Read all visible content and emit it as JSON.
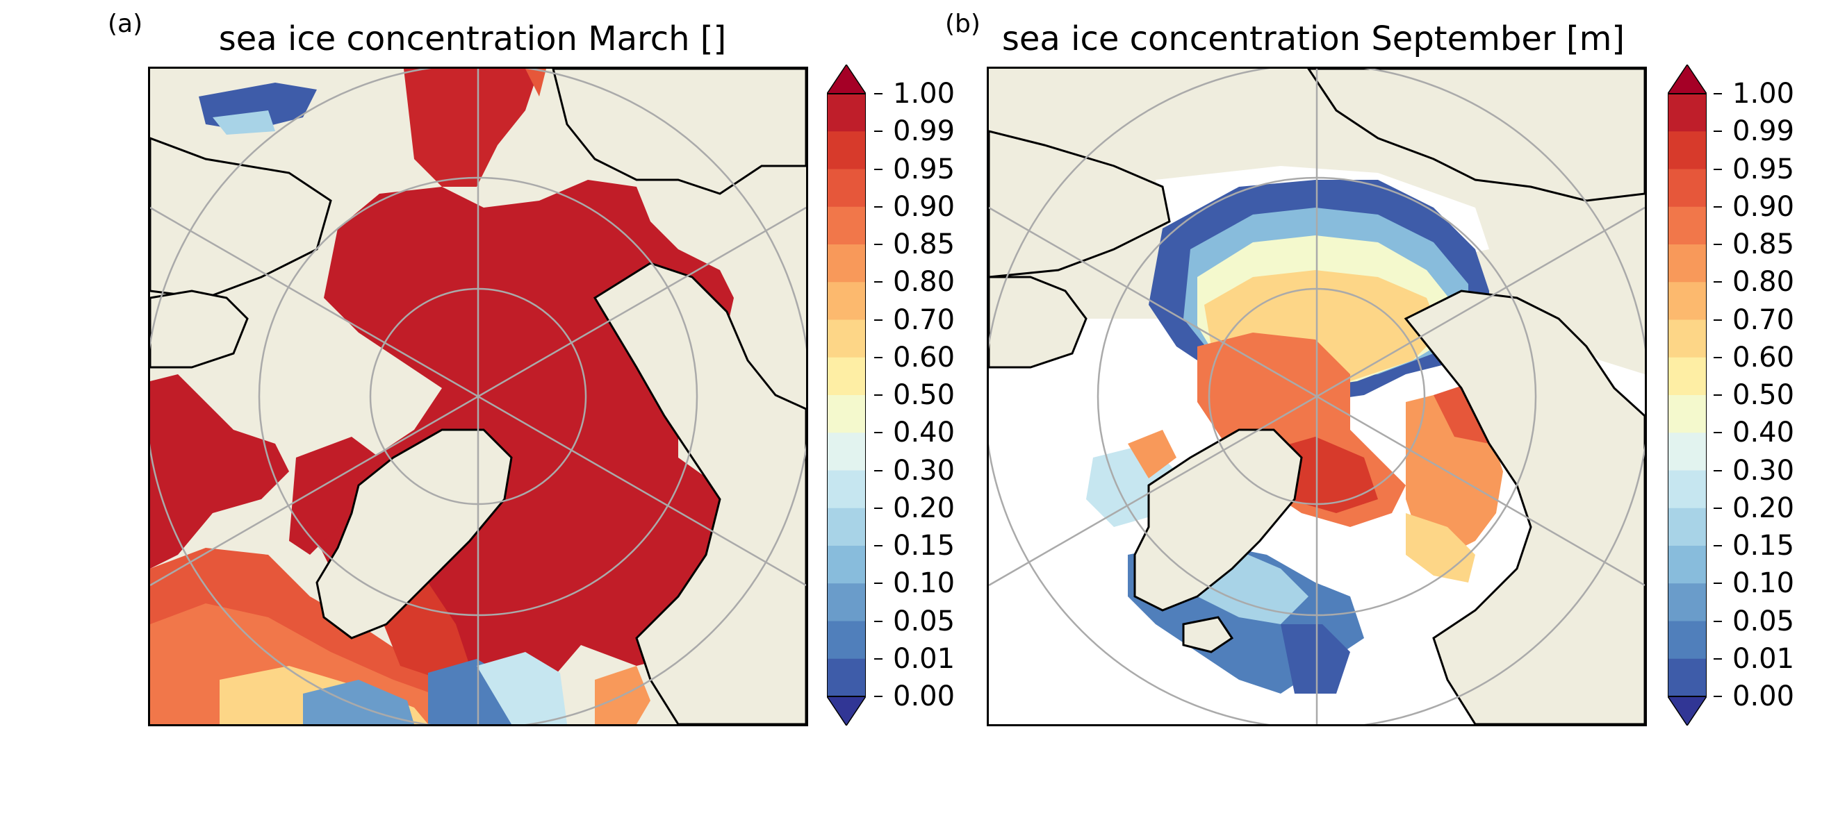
{
  "colorbar": {
    "ticks": [
      "1.00",
      "0.99",
      "0.95",
      "0.90",
      "0.85",
      "0.80",
      "0.70",
      "0.60",
      "0.50",
      "0.40",
      "0.30",
      "0.20",
      "0.15",
      "0.10",
      "0.05",
      "0.01",
      "0.00"
    ],
    "colors": [
      "#bf1e2a",
      "#d73a2b",
      "#e6573a",
      "#f1774a",
      "#f8995a",
      "#fcb96e",
      "#fdd687",
      "#feeea4",
      "#f4f9cd",
      "#e2f3ef",
      "#c6e6f0",
      "#a8d3e7",
      "#88bcdc",
      "#6a9cca",
      "#507fbb",
      "#3e5ca9"
    ],
    "over_color": "#a50026",
    "under_color": "#313695"
  },
  "panels": [
    {
      "letter": "(a)",
      "title": "sea ice concentration March []"
    },
    {
      "letter": "(b)",
      "title": "sea ice concentration September [m]"
    }
  ],
  "colors": {
    "land": "#efedde",
    "ocean_open": "#ffffff",
    "grid": "#aaaaaa",
    "coast": "#000000"
  }
}
